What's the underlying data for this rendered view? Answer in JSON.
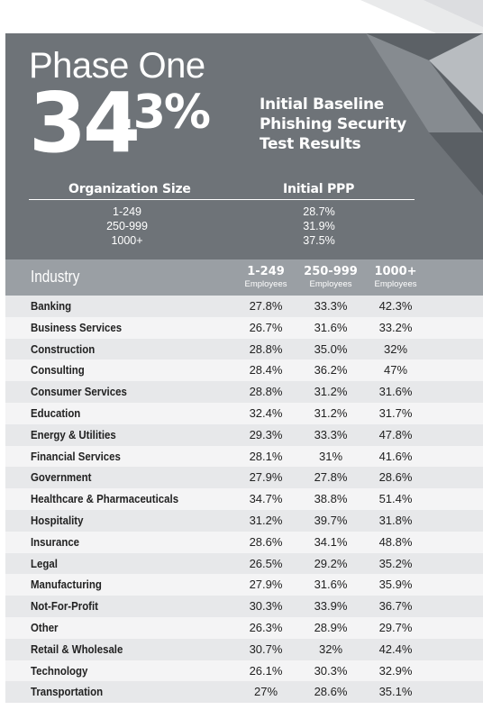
{
  "header": {
    "phase": "Phase One",
    "big_whole": "34",
    "big_decimal": ".3%",
    "headline_lines": [
      "Initial Baseline",
      "Phishing Security",
      "Test Results"
    ]
  },
  "org_summary": {
    "col1_header": "Organization Size",
    "col2_header": "Initial PPP",
    "rows": [
      {
        "size": "1-249",
        "ppp": "28.7%"
      },
      {
        "size": "250-999",
        "ppp": "31.9%"
      },
      {
        "size": "1000+",
        "ppp": "37.5%"
      }
    ]
  },
  "table": {
    "industry_header": "Industry",
    "columns": [
      {
        "label": "1-249",
        "sub": "Employees"
      },
      {
        "label": "250-999",
        "sub": "Employees"
      },
      {
        "label": "1000+",
        "sub": "Employees"
      }
    ],
    "rows": [
      {
        "industry": "Banking",
        "v": [
          "27.8%",
          "33.3%",
          "42.3%"
        ]
      },
      {
        "industry": "Business Services",
        "v": [
          "26.7%",
          "31.6%",
          "33.2%"
        ]
      },
      {
        "industry": "Construction",
        "v": [
          "28.8%",
          "35.0%",
          "32%"
        ]
      },
      {
        "industry": "Consulting",
        "v": [
          "28.4%",
          "36.2%",
          "47%"
        ]
      },
      {
        "industry": "Consumer Services",
        "v": [
          "28.8%",
          "31.2%",
          "31.6%"
        ]
      },
      {
        "industry": "Education",
        "v": [
          "32.4%",
          "31.2%",
          "31.7%"
        ]
      },
      {
        "industry": "Energy & Utilities",
        "v": [
          "29.3%",
          "33.3%",
          "47.8%"
        ]
      },
      {
        "industry": "Financial Services",
        "v": [
          "28.1%",
          "31%",
          "41.6%"
        ]
      },
      {
        "industry": "Government",
        "v": [
          "27.9%",
          "27.8%",
          "28.6%"
        ]
      },
      {
        "industry": "Healthcare & Pharmaceuticals",
        "v": [
          "34.7%",
          "38.8%",
          "51.4%"
        ]
      },
      {
        "industry": "Hospitality",
        "v": [
          "31.2%",
          "39.7%",
          "31.8%"
        ]
      },
      {
        "industry": "Insurance",
        "v": [
          "28.6%",
          "34.1%",
          "48.8%"
        ]
      },
      {
        "industry": "Legal",
        "v": [
          "26.5%",
          "29.2%",
          "35.2%"
        ]
      },
      {
        "industry": "Manufacturing",
        "v": [
          "27.9%",
          "31.6%",
          "35.9%"
        ]
      },
      {
        "industry": "Not-For-Profit",
        "v": [
          "30.3%",
          "33.9%",
          "36.7%"
        ]
      },
      {
        "industry": "Other",
        "v": [
          "26.3%",
          "28.9%",
          "29.7%"
        ]
      },
      {
        "industry": "Retail & Wholesale",
        "v": [
          "30.7%",
          "32%",
          "42.4%"
        ]
      },
      {
        "industry": "Technology",
        "v": [
          "26.1%",
          "30.3%",
          "32.9%"
        ]
      },
      {
        "industry": "Transportation",
        "v": [
          "27%",
          "28.6%",
          "35.1%"
        ]
      }
    ]
  },
  "colors": {
    "header_bg": "#6e7378",
    "table_header_bg": "#9a9fa4",
    "row_alt_bg": "#e7e8ea",
    "row_light_bg": "#f4f4f5"
  }
}
